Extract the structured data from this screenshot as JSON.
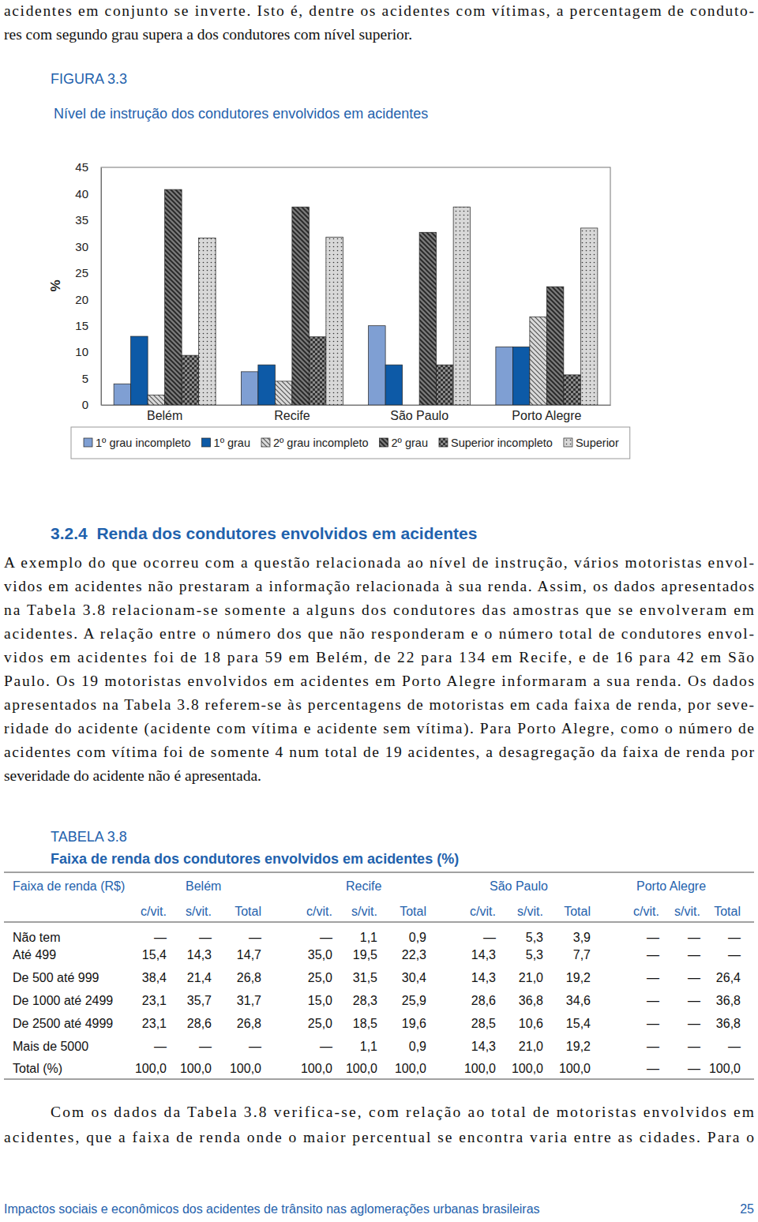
{
  "intro_lines": [
    "acidentes em conjunto se inverte. Isto é, dentre os acidentes com vítimas, a percentagem de conduto-",
    "res com segundo grau supera a dos condutores com nível superior."
  ],
  "figure": "FIGURA 3.3",
  "chart_data": {
    "type": "bar",
    "title": "Nível de instrução dos condutores envolvidos em acidentes",
    "y_label": "%",
    "categories": [
      "Belém",
      "Recife",
      "São Paulo",
      "Porto Alegre"
    ],
    "series": [
      {
        "name": "1º grau incompleto",
        "color": "#7f9fd3",
        "values": [
          4,
          6.3,
          15,
          11
        ]
      },
      {
        "name": "1º grau",
        "color": "#0d5aa7",
        "values": [
          13,
          7.6,
          7.6,
          11
        ]
      },
      {
        "name": "2º grau incompleto",
        "color": "#dadada",
        "values": [
          1.9,
          4.5,
          0,
          16.7
        ]
      },
      {
        "name": "2º grau",
        "color": "#7c7c7c",
        "values": [
          40.8,
          37.5,
          32.7,
          22.4
        ]
      },
      {
        "name": "Superior incompleto",
        "color": "#8c8c8c",
        "values": [
          9.4,
          12.9,
          7.6,
          5.7
        ]
      },
      {
        "name": "Superior",
        "color": "#d8d8d8",
        "values": [
          31.6,
          31.8,
          37.5,
          33.5
        ]
      }
    ],
    "ylim": [
      0,
      45
    ],
    "yticks": [
      0,
      5,
      10,
      15,
      20,
      25,
      30,
      35,
      40,
      45
    ],
    "grid": false,
    "legend": "bottom"
  },
  "heading": "3.2.4  Renda dos condutores envolvidos em acidentes",
  "body_lines": [
    "A exemplo do que ocorreu com a questão relacionada ao nível de instrução, vários motoristas envol-",
    "vidos em acidentes não prestaram a informação relacionada à sua renda. Assim, os dados apresentados",
    "na Tabela 3.8 relacionam-se somente a alguns dos condutores das amostras que se envolveram em",
    "acidentes. A relação entre o número dos que não responderam e o número total de condutores envol-",
    "vidos em acidentes foi de 18 para 59 em Belém, de 22 para 134 em Recife, e de 16 para 42 em São",
    "Paulo. Os 19 motoristas envolvidos em acidentes em Porto Alegre informaram a sua renda. Os dados",
    "apresentados na Tabela 3.8 referem-se às percentagens de motoristas em cada faixa de renda, por seve-",
    "ridade do acidente (acidente com vítima e acidente sem vítima). Para Porto Alegre, como o número de",
    "acidentes com vítima foi de somente 4 num total de 19 acidentes, a desagregação da faixa de renda por",
    "severidade do acidente não é apresentada."
  ],
  "table": {
    "label": "TABELA 3.8",
    "title": "Faixa de renda dos condutores envolvidos em acidentes (%)",
    "header": [
      "Faixa de renda (R$)",
      "Belém",
      "Recife",
      "São Paulo",
      "Porto Alegre"
    ],
    "subheader": [
      "c/vit.",
      "s/vit.",
      "Total",
      "c/vit.",
      "s/vit.",
      "Total",
      "c/vit.",
      "s/vit.",
      "Total",
      "c/vit.",
      "s/vit.",
      "Total"
    ],
    "rows": [
      [
        "Não tem",
        "—",
        "—",
        "—",
        "—",
        "1,1",
        "0,9",
        "—",
        "5,3",
        "3,9",
        "—",
        "—",
        "—"
      ],
      [
        "Até 499",
        "15,4",
        "14,3",
        "14,7",
        "35,0",
        "19,5",
        "22,3",
        "14,3",
        "5,3",
        "7,7",
        "—",
        "—",
        "—"
      ],
      [
        "De 500 até 999",
        "38,4",
        "21,4",
        "26,8",
        "25,0",
        "31,5",
        "30,4",
        "14,3",
        "21,0",
        "19,2",
        "—",
        "—",
        "26,4"
      ],
      [
        "De 1000 até 2499",
        "23,1",
        "35,7",
        "31,7",
        "15,0",
        "28,3",
        "25,9",
        "28,6",
        "36,8",
        "34,6",
        "—",
        "—",
        "36,8"
      ],
      [
        "De 2500 até 4999",
        "23,1",
        "28,6",
        "26,8",
        "25,0",
        "18,5",
        "19,6",
        "28,5",
        "10,6",
        "15,4",
        "—",
        "—",
        "36,8"
      ],
      [
        "Mais de 5000",
        "—",
        "—",
        "—",
        "—",
        "1,1",
        "0,9",
        "14,3",
        "21,0",
        "19,2",
        "—",
        "—",
        "—"
      ],
      [
        "Total (%)",
        "100,0",
        "100,0",
        "100,0",
        "100,0",
        "100,0",
        "100,0",
        "100,0",
        "100,0",
        "100,0",
        "—",
        "—",
        "100,0"
      ]
    ]
  },
  "closing_lines": [
    "Com os dados da Tabela 3.8 verifica-se, com relação ao total de motoristas envolvidos em",
    "acidentes, que a faixa de renda onde o maior percentual se encontra varia entre as cidades. Para o"
  ],
  "footer": {
    "text": "Impactos sociais e econômicos dos acidentes de trânsito nas aglomerações urbanas brasileiras",
    "page": "25"
  }
}
